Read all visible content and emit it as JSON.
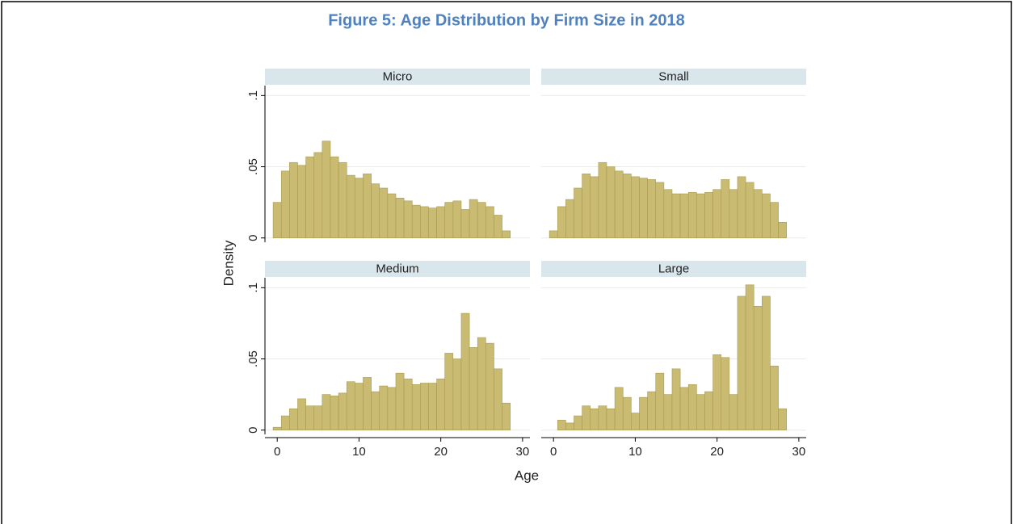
{
  "figure": {
    "title": "Figure 5: Age Distribution by Firm Size in 2018",
    "xlabel": "Age",
    "ylabel": "Density",
    "xlim": [
      -1.5,
      30.9
    ],
    "xticks": [
      0,
      10,
      20,
      30
    ],
    "ylim": [
      -0.003,
      0.107
    ],
    "yticks": [
      0,
      {
        "value": 0.05,
        "label": ".05"
      },
      {
        "value": 0.1,
        "label": ".1"
      }
    ],
    "grid": true
  },
  "chart_data": [
    {
      "type": "histogram",
      "title": "Micro",
      "color": "#c9bb72",
      "bins": [
        -0.5,
        0.5,
        1.5,
        2.5,
        3.5,
        4.5,
        5.5,
        6.5,
        7.5,
        8.5,
        9.5,
        10.5,
        11.5,
        12.5,
        13.5,
        14.5,
        15.5,
        16.5,
        17.5,
        18.5,
        19.5,
        20.5,
        21.5,
        22.5,
        23.5,
        24.5,
        25.5,
        26.5,
        27.5,
        28.5
      ],
      "values": [
        0.025,
        0.047,
        0.053,
        0.051,
        0.057,
        0.06,
        0.068,
        0.057,
        0.053,
        0.044,
        0.042,
        0.045,
        0.038,
        0.035,
        0.031,
        0.028,
        0.026,
        0.023,
        0.022,
        0.021,
        0.022,
        0.025,
        0.026,
        0.02,
        0.027,
        0.025,
        0.022,
        0.016,
        0.005
      ]
    },
    {
      "type": "histogram",
      "title": "Small",
      "color": "#c9bb72",
      "bins": [
        -0.5,
        0.5,
        1.5,
        2.5,
        3.5,
        4.5,
        5.5,
        6.5,
        7.5,
        8.5,
        9.5,
        10.5,
        11.5,
        12.5,
        13.5,
        14.5,
        15.5,
        16.5,
        17.5,
        18.5,
        19.5,
        20.5,
        21.5,
        22.5,
        23.5,
        24.5,
        25.5,
        26.5,
        27.5,
        28.5
      ],
      "values": [
        0.005,
        0.022,
        0.027,
        0.035,
        0.045,
        0.043,
        0.053,
        0.05,
        0.047,
        0.045,
        0.043,
        0.042,
        0.041,
        0.039,
        0.034,
        0.031,
        0.031,
        0.032,
        0.031,
        0.032,
        0.034,
        0.041,
        0.034,
        0.043,
        0.039,
        0.034,
        0.031,
        0.025,
        0.011
      ]
    },
    {
      "type": "histogram",
      "title": "Medium",
      "color": "#c9bb72",
      "bins": [
        -0.5,
        0.5,
        1.5,
        2.5,
        3.5,
        4.5,
        5.5,
        6.5,
        7.5,
        8.5,
        9.5,
        10.5,
        11.5,
        12.5,
        13.5,
        14.5,
        15.5,
        16.5,
        17.5,
        18.5,
        19.5,
        20.5,
        21.5,
        22.5,
        23.5,
        24.5,
        25.5,
        26.5,
        27.5,
        28.5
      ],
      "values": [
        0.002,
        0.01,
        0.015,
        0.022,
        0.017,
        0.017,
        0.025,
        0.024,
        0.026,
        0.034,
        0.033,
        0.037,
        0.027,
        0.031,
        0.03,
        0.04,
        0.036,
        0.032,
        0.033,
        0.033,
        0.036,
        0.054,
        0.05,
        0.082,
        0.058,
        0.065,
        0.061,
        0.043,
        0.019
      ]
    },
    {
      "type": "histogram",
      "title": "Large",
      "color": "#c9bb72",
      "bins": [
        -0.5,
        0.5,
        1.5,
        2.5,
        3.5,
        4.5,
        5.5,
        6.5,
        7.5,
        8.5,
        9.5,
        10.5,
        11.5,
        12.5,
        13.5,
        14.5,
        15.5,
        16.5,
        17.5,
        18.5,
        19.5,
        20.5,
        21.5,
        22.5,
        23.5,
        24.5,
        25.5,
        26.5,
        27.5,
        28.5
      ],
      "values": [
        0,
        0.007,
        0.005,
        0.01,
        0.017,
        0.015,
        0.017,
        0.015,
        0.03,
        0.023,
        0.012,
        0.023,
        0.027,
        0.04,
        0.025,
        0.043,
        0.03,
        0.032,
        0.025,
        0.027,
        0.053,
        0.051,
        0.025,
        0.094,
        0.102,
        0.087,
        0.094,
        0.045,
        0.015
      ]
    }
  ]
}
